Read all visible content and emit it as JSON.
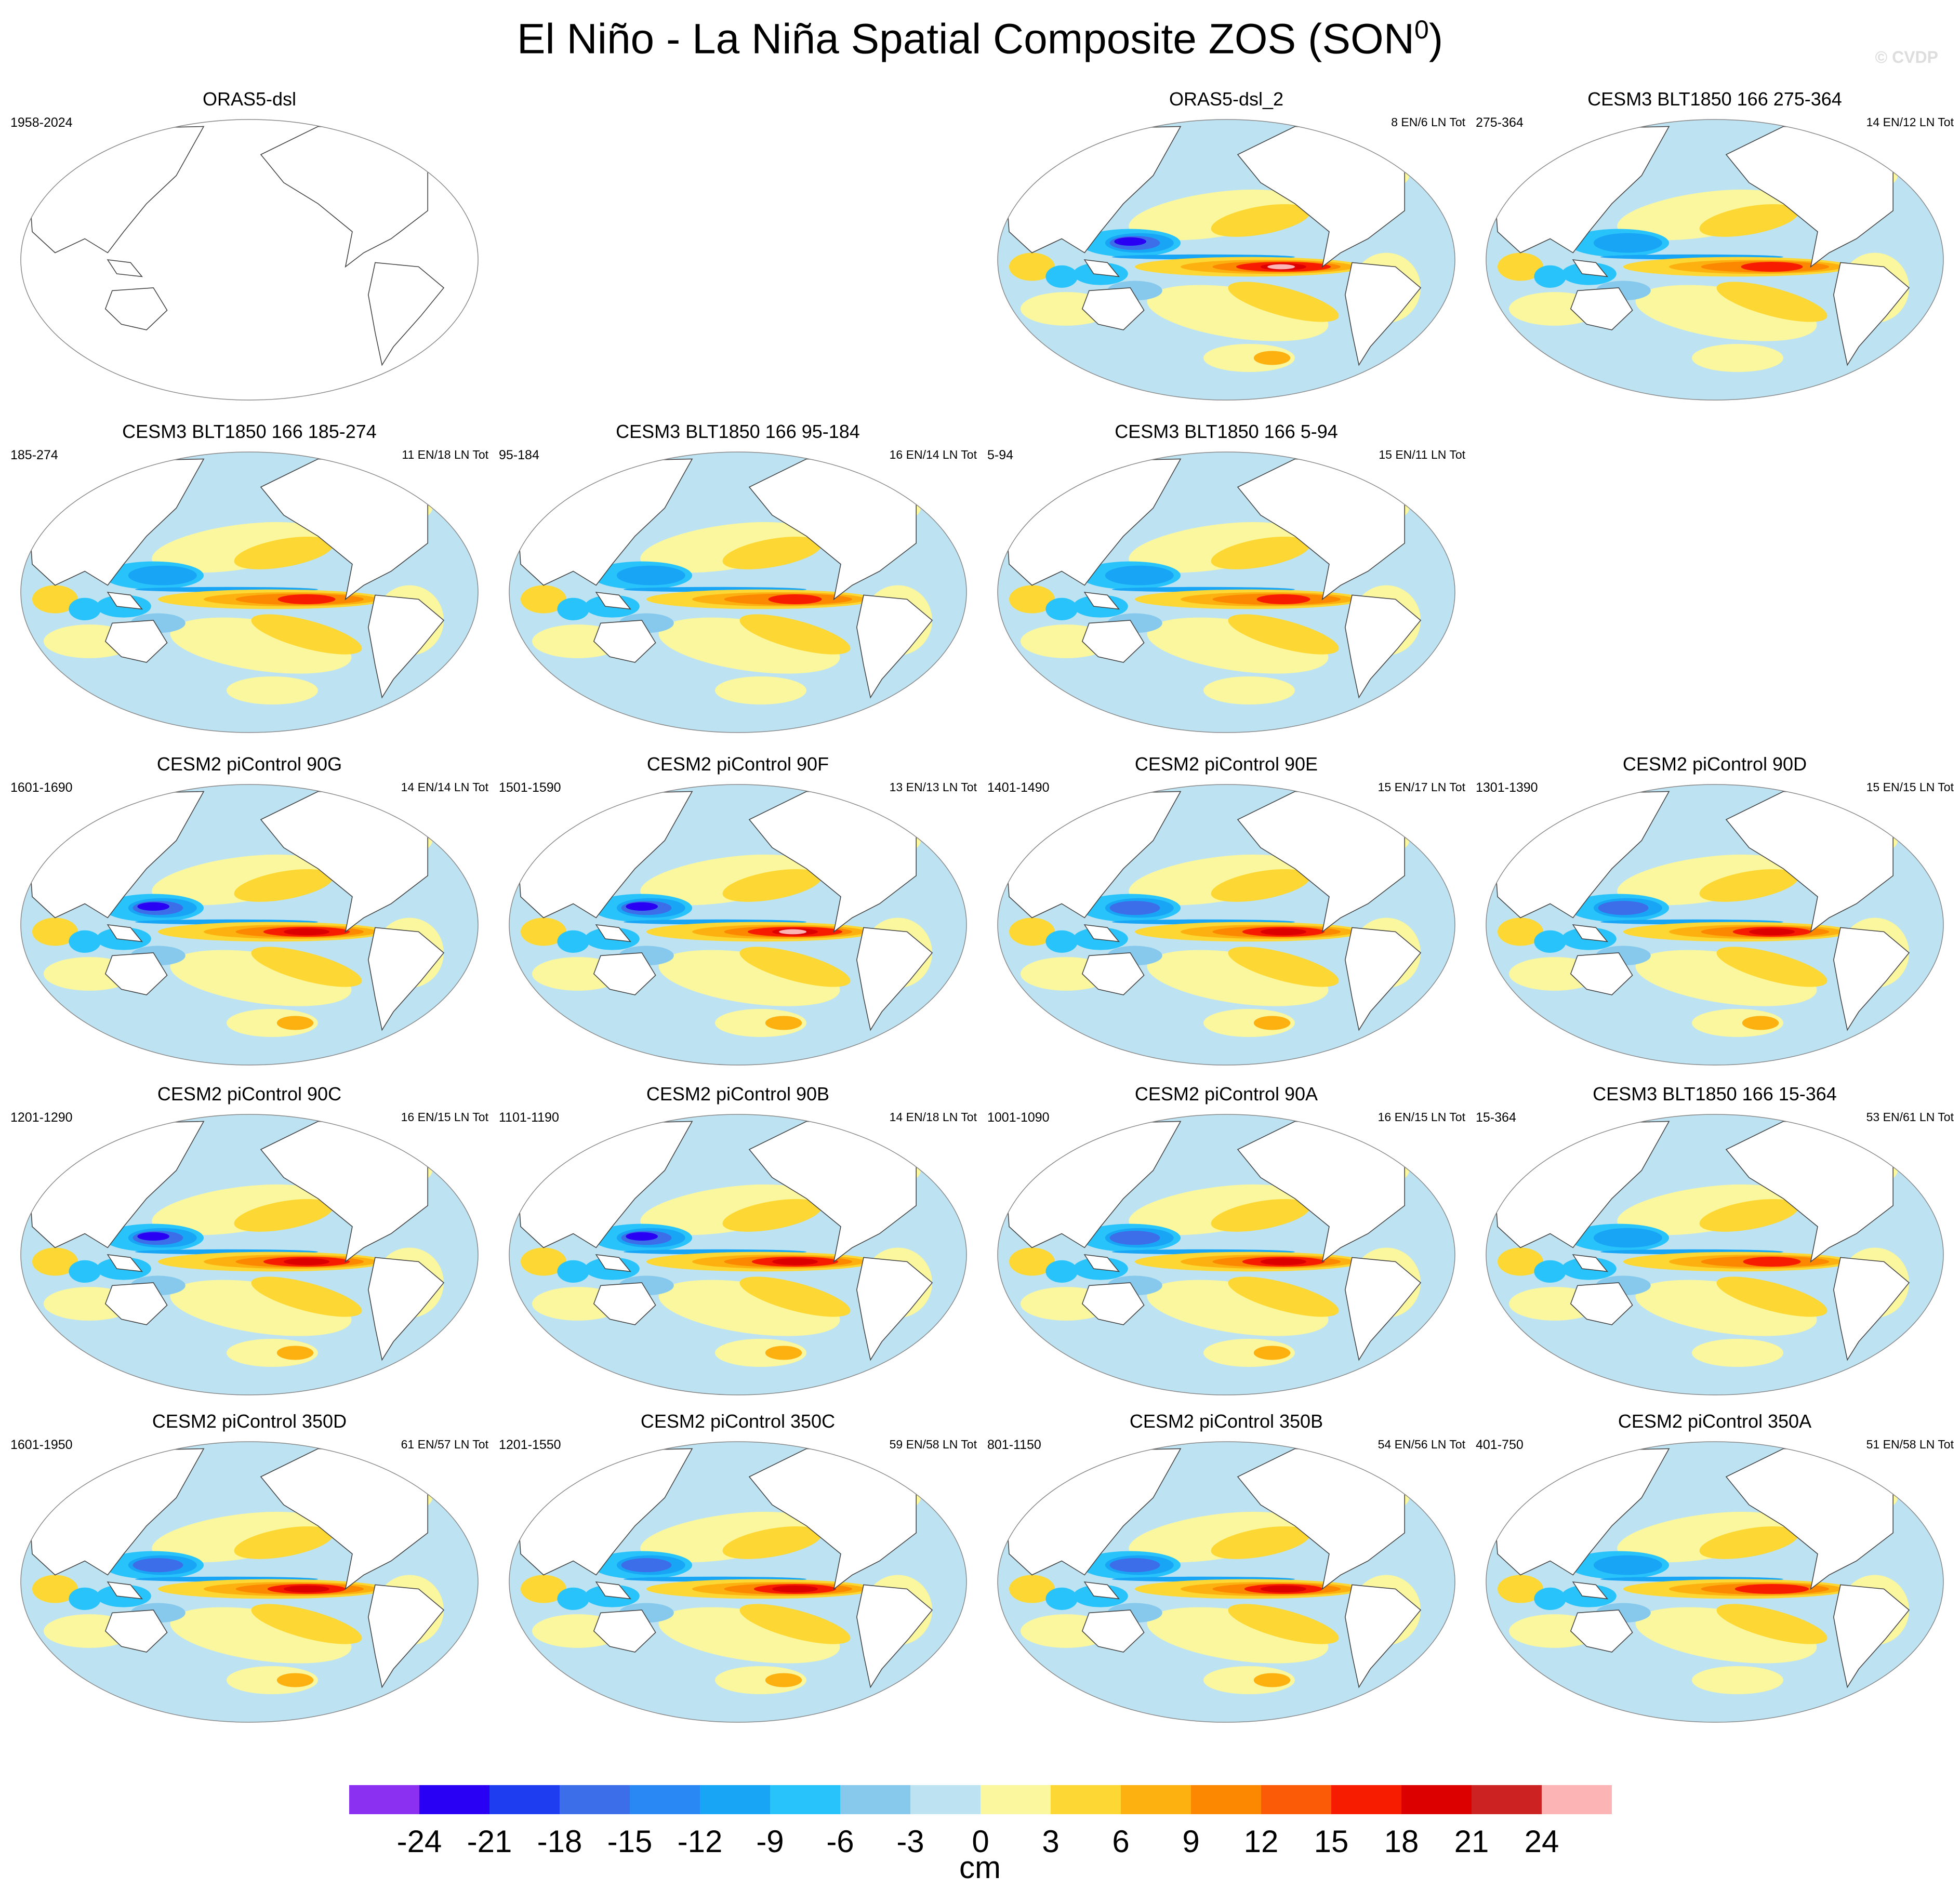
{
  "title": "El Niño - La Niña Spatial Composite ZOS (SON",
  "title_superscript": "0",
  "title_suffix": ")",
  "copyright": "© CVDP",
  "chart_data": {
    "type": "heatmap",
    "variable": "ZOS",
    "season": "SON0",
    "units": "cm",
    "projection": "Robinson (Pacific-centered)",
    "colorbar": {
      "levels": [
        -24,
        -21,
        -18,
        -15,
        -12,
        -9,
        -6,
        -3,
        0,
        3,
        6,
        9,
        12,
        15,
        18,
        21,
        24
      ],
      "labels": [
        "-24",
        "-21",
        "-18",
        "-15",
        "-12",
        "-9",
        "-6",
        "-3",
        "0",
        "3",
        "6",
        "9",
        "12",
        "15",
        "18",
        "21",
        "24"
      ],
      "colors": [
        "#8b2ff0",
        "#2a00f5",
        "#1e3cf0",
        "#3b6ee8",
        "#2a88f5",
        "#19a5f5",
        "#27c3fa",
        "#86c9ec",
        "#bde2f2",
        "#fbf79e",
        "#fdd834",
        "#fdb110",
        "#fb8800",
        "#fb5a06",
        "#f71c00",
        "#dd0000",
        "#cc2222",
        "#fcb4b4"
      ]
    },
    "panels": [
      {
        "title": "ORAS5-dsl",
        "years": "1958-2024",
        "counts": "",
        "row": 0,
        "col": 0,
        "empty": true,
        "intensity": 0
      },
      {
        "title": "ORAS5-dsl_2",
        "years": "",
        "counts": "8 EN/6 LN Tot",
        "row": 0,
        "col": 2,
        "empty": false,
        "intensity": 1.15
      },
      {
        "title": "CESM3 BLT1850 166 275-364",
        "years": "275-364",
        "counts": "14 EN/12 LN Tot",
        "row": 0,
        "col": 3,
        "empty": false,
        "intensity": 0.75
      },
      {
        "title": "CESM3 BLT1850 166 185-274",
        "years": "185-274",
        "counts": "11 EN/18 LN Tot",
        "row": 1,
        "col": 0,
        "empty": false,
        "intensity": 0.7
      },
      {
        "title": "CESM3 BLT1850 166 95-184",
        "years": "95-184",
        "counts": "16 EN/14 LN Tot",
        "row": 1,
        "col": 1,
        "empty": false,
        "intensity": 0.65
      },
      {
        "title": "CESM3 BLT1850 166 5-94",
        "years": "5-94",
        "counts": "15 EN/11 LN Tot",
        "row": 1,
        "col": 2,
        "empty": false,
        "intensity": 0.65
      },
      {
        "title": "CESM2 piControl 90G",
        "years": "1601-1690",
        "counts": "14 EN/14 LN Tot",
        "row": 2,
        "col": 0,
        "empty": false,
        "intensity": 1.05
      },
      {
        "title": "CESM2 piControl 90F",
        "years": "1501-1590",
        "counts": "13 EN/13 LN Tot",
        "row": 2,
        "col": 1,
        "empty": false,
        "intensity": 1.15
      },
      {
        "title": "CESM2 piControl 90E",
        "years": "1401-1490",
        "counts": "15 EN/17 LN Tot",
        "row": 2,
        "col": 2,
        "empty": false,
        "intensity": 1.0
      },
      {
        "title": "CESM2 piControl 90D",
        "years": "1301-1390",
        "counts": "15 EN/15 LN Tot",
        "row": 2,
        "col": 3,
        "empty": false,
        "intensity": 0.95
      },
      {
        "title": "CESM2 piControl 90C",
        "years": "1201-1290",
        "counts": "16 EN/15 LN Tot",
        "row": 3,
        "col": 0,
        "empty": false,
        "intensity": 1.05
      },
      {
        "title": "CESM2 piControl 90B",
        "years": "1101-1190",
        "counts": "14 EN/18 LN Tot",
        "row": 3,
        "col": 1,
        "empty": false,
        "intensity": 1.05
      },
      {
        "title": "CESM2 piControl 90A",
        "years": "1001-1090",
        "counts": "16 EN/15 LN Tot",
        "row": 3,
        "col": 2,
        "empty": false,
        "intensity": 1.0
      },
      {
        "title": "CESM3 BLT1850 166 15-364",
        "years": "15-364",
        "counts": "53 EN/61 LN Tot",
        "row": 3,
        "col": 3,
        "empty": false,
        "intensity": 0.7
      },
      {
        "title": "CESM2 piControl 350D",
        "years": "1601-1950",
        "counts": "61 EN/57 LN Tot",
        "row": 4,
        "col": 0,
        "empty": false,
        "intensity": 0.95
      },
      {
        "title": "CESM2 piControl 350C",
        "years": "1201-1550",
        "counts": "59 EN/58 LN Tot",
        "row": 4,
        "col": 1,
        "empty": false,
        "intensity": 1.0
      },
      {
        "title": "CESM2 piControl 350B",
        "years": "801-1150",
        "counts": "54 EN/56 LN Tot",
        "row": 4,
        "col": 2,
        "empty": false,
        "intensity": 0.95
      },
      {
        "title": "CESM2 piControl 350A",
        "years": "401-750",
        "counts": "51 EN/58 LN Tot",
        "row": 4,
        "col": 3,
        "empty": false,
        "intensity": 0.9
      }
    ]
  }
}
